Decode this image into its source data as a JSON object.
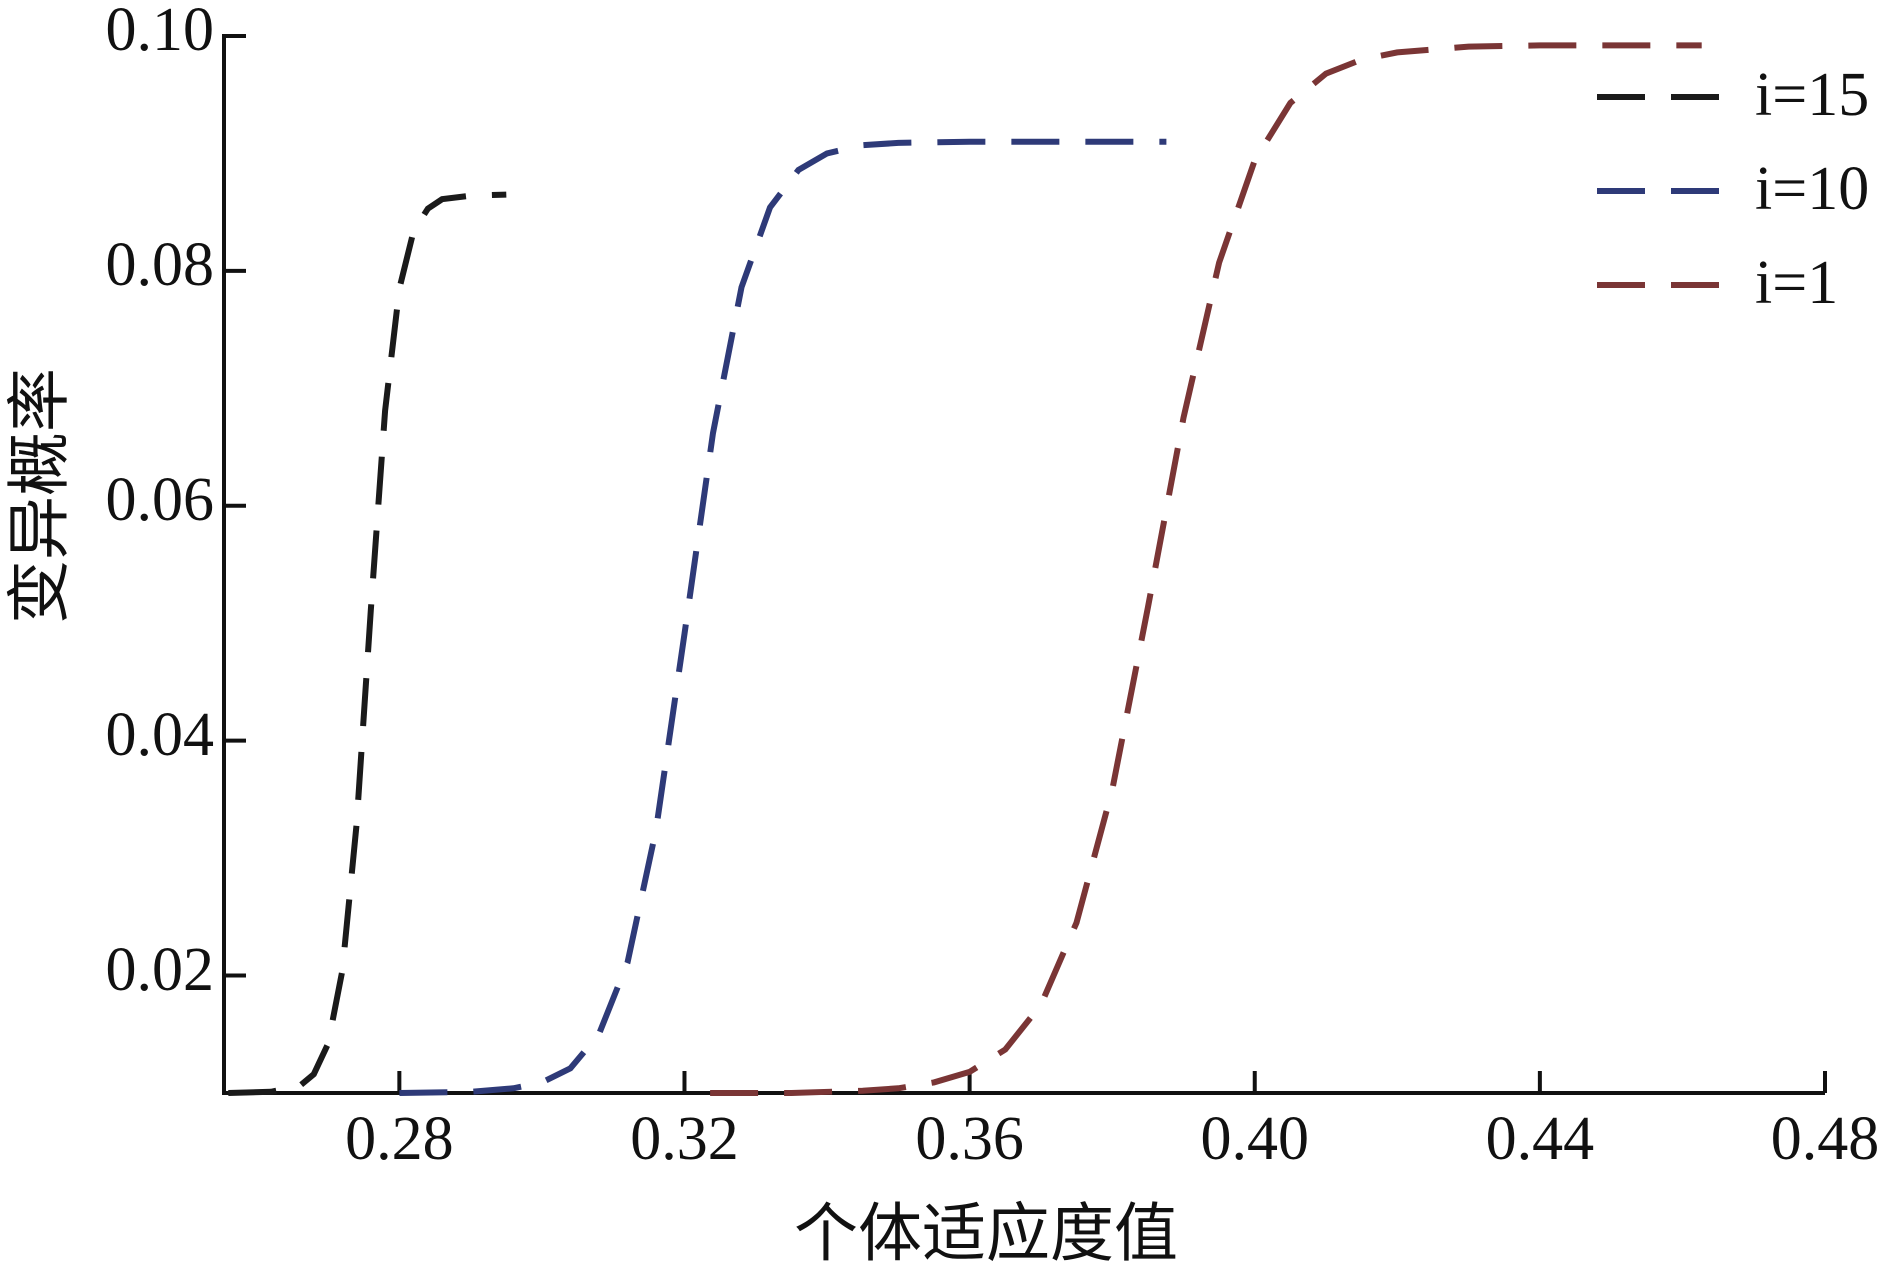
{
  "chart_data": {
    "type": "line",
    "xlabel": "个体适应度值",
    "ylabel": "变异概率",
    "xlim": [
      0.2554,
      0.48
    ],
    "ylim": [
      0.01,
      0.1
    ],
    "xticks": [
      {
        "value": 0.28,
        "label": "0.28"
      },
      {
        "value": 0.32,
        "label": "0.32"
      },
      {
        "value": 0.36,
        "label": "0.36"
      },
      {
        "value": 0.4,
        "label": "0.40"
      },
      {
        "value": 0.44,
        "label": "0.44"
      },
      {
        "value": 0.48,
        "label": "0.48"
      }
    ],
    "yticks": [
      0.02,
      0.04,
      0.06,
      0.08,
      {
        "value": 0.1,
        "label": "0.10"
      }
    ],
    "legend": "upper right",
    "series": [
      {
        "name": "i=15",
        "color": "#1a1a1a",
        "x": [
          0.256,
          0.262,
          0.266,
          0.268,
          0.27,
          0.272,
          0.274,
          0.276,
          0.278,
          0.28,
          0.282,
          0.284,
          0.286,
          0.29,
          0.295
        ],
        "values": [
          0.01,
          0.0101,
          0.0106,
          0.0116,
          0.0142,
          0.0204,
          0.0329,
          0.0511,
          0.0681,
          0.0785,
          0.0834,
          0.0853,
          0.0861,
          0.0864,
          0.0865
        ]
      },
      {
        "name": "i=10",
        "color": "#2e3a78",
        "x": [
          0.28,
          0.29,
          0.296,
          0.3,
          0.304,
          0.308,
          0.312,
          0.316,
          0.32,
          0.324,
          0.328,
          0.332,
          0.336,
          0.34,
          0.345,
          0.35,
          0.36,
          0.37,
          0.3876
        ],
        "values": [
          0.01,
          0.0101,
          0.0104,
          0.0109,
          0.0121,
          0.015,
          0.0211,
          0.0324,
          0.0491,
          0.0662,
          0.0786,
          0.0854,
          0.0886,
          0.09,
          0.0907,
          0.0909,
          0.091,
          0.091,
          0.091
        ]
      },
      {
        "name": "i=1",
        "color": "#7a3535",
        "x": [
          0.3236,
          0.335,
          0.345,
          0.35,
          0.355,
          0.36,
          0.365,
          0.37,
          0.375,
          0.38,
          0.385,
          0.39,
          0.395,
          0.4,
          0.405,
          0.41,
          0.415,
          0.42,
          0.43,
          0.44,
          0.4627
        ],
        "values": [
          0.01,
          0.01,
          0.0102,
          0.0104,
          0.0109,
          0.0118,
          0.0137,
          0.0175,
          0.0245,
          0.0358,
          0.0513,
          0.0675,
          0.0807,
          0.0894,
          0.0943,
          0.0968,
          0.098,
          0.0986,
          0.0991,
          0.0992,
          0.0992
        ]
      }
    ]
  }
}
